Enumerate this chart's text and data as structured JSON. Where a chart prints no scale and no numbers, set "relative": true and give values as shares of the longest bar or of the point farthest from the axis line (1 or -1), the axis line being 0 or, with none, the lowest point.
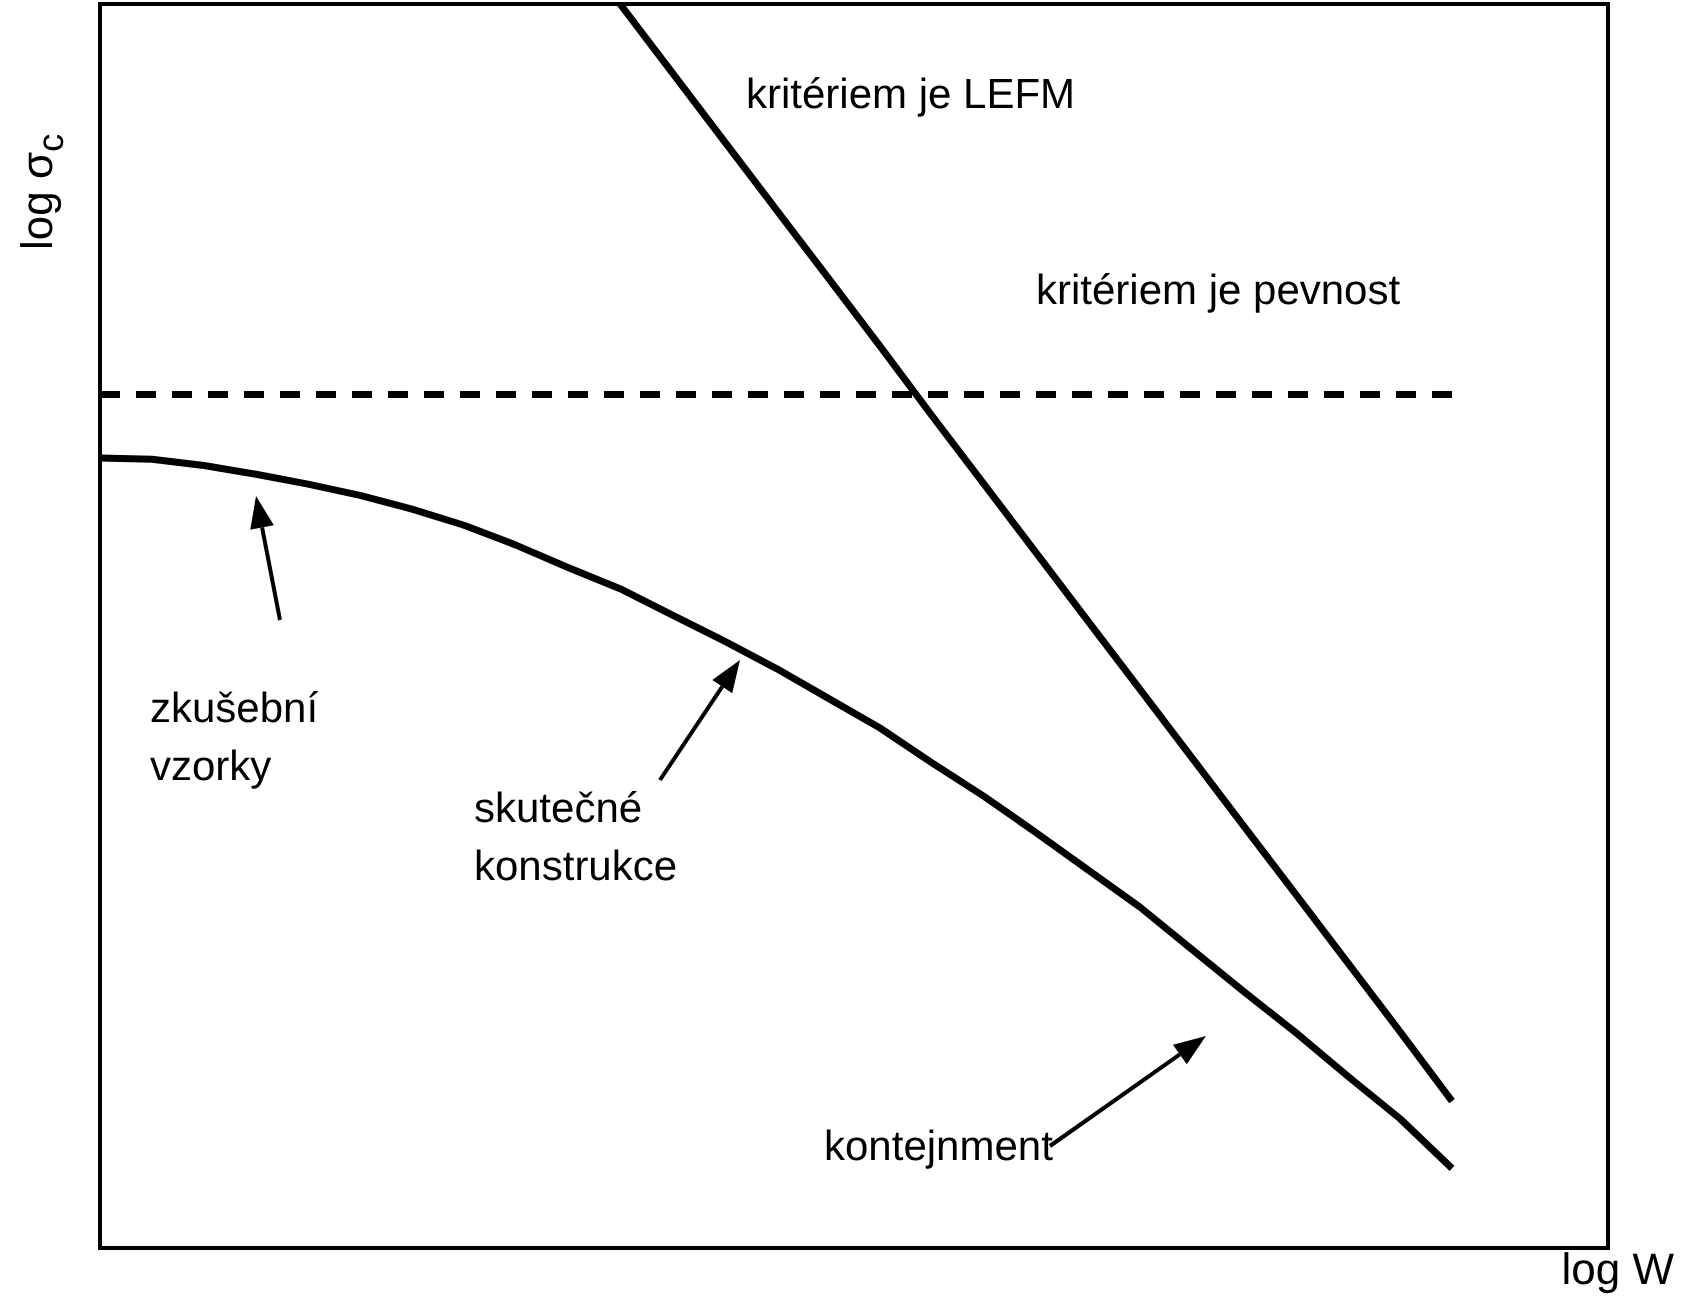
{
  "chart_data": {
    "type": "line",
    "relative": true,
    "xlabel": "log W",
    "ylabel": "log σ$_{c}$",
    "categories": [
      null,
      null,
      null,
      null,
      null,
      null,
      null,
      null,
      null,
      null,
      null,
      null,
      null,
      null,
      null,
      null,
      null,
      null,
      null,
      null,
      null,
      null,
      null,
      null,
      null,
      null,
      null,
      null,
      null,
      null
    ],
    "series": [
      {
        "color": "#000000",
        "line_style": "solid",
        "values": [
          null,
          null,
          null,
          null,
          null,
          null,
          null,
          null,
          null,
          null,
          1,
          0.945,
          0.89,
          0.835,
          0.78,
          0.725,
          0.669,
          0.614,
          0.559,
          0.504,
          0.449,
          0.394,
          0.339,
          0.284,
          0.229,
          0.174,
          0.118,
          null,
          null,
          null
        ]
      },
      {
        "color": "#000000",
        "line_style": "dashed",
        "values": [
          0.686,
          0.686,
          0.686,
          0.686,
          0.686,
          0.686,
          0.686,
          0.686,
          0.686,
          0.686,
          0.686,
          0.686,
          0.686,
          0.686,
          0.686,
          0.686,
          0.686,
          0.686,
          0.686,
          0.686,
          0.686,
          0.686,
          0.686,
          0.686,
          0.686,
          0.686,
          0.686,
          null,
          null,
          null
        ]
      },
      {
        "color": "#000000",
        "line_style": "solid",
        "values": [
          0.635,
          0.634,
          0.629,
          0.622,
          0.614,
          0.605,
          0.594,
          0.581,
          0.565,
          0.547,
          0.53,
          0.509,
          0.488,
          0.466,
          0.442,
          0.418,
          0.39,
          0.363,
          0.334,
          0.304,
          0.274,
          0.24,
          0.206,
          0.173,
          0.138,
          0.104,
          0.064,
          null,
          null,
          null
        ]
      }
    ],
    "annotations": [
      "kritériem je LEFM",
      "kritériem je pevnost",
      "zkušební vzorky",
      "skutečné konstrukce",
      "kontejnment"
    ]
  }
}
